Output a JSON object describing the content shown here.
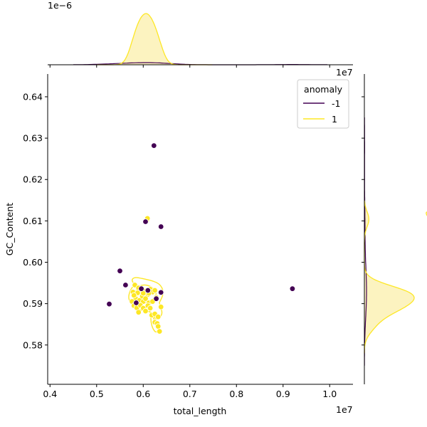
{
  "chart_data": {
    "type": "scatter",
    "xlabel": "total_length",
    "ylabel": "GC_Content",
    "x_offset_label": "1e7",
    "y_offset_label": "",
    "top_marginal_offset_label": "1e−6",
    "right_marginal_offset_label": "1e7",
    "xlim": [
      0.395,
      1.05
    ],
    "ylim": [
      0.5705,
      0.6455
    ],
    "x_ticks": [
      0.4,
      0.5,
      0.6,
      0.7,
      0.8,
      0.9,
      1.0
    ],
    "x_tick_labels": [
      "0.4",
      "0.5",
      "0.6",
      "0.7",
      "0.8",
      "0.9",
      "1.0"
    ],
    "y_ticks": [
      0.58,
      0.59,
      0.6,
      0.61,
      0.62,
      0.63,
      0.64
    ],
    "y_tick_labels": [
      "0.58",
      "0.59",
      "0.60",
      "0.61",
      "0.62",
      "0.63",
      "0.64"
    ],
    "legend": {
      "title": "anomaly",
      "location": "upper right",
      "entries": [
        {
          "label": "-1",
          "color": "#440154"
        },
        {
          "label": "1",
          "color": "#fde725"
        }
      ]
    },
    "colors": {
      "anomaly_neg": "#440154",
      "anomaly_pos": "#fde725",
      "kde_fill": "#fcf3c0"
    },
    "series": [
      {
        "name": "-1",
        "color": "#440154",
        "points": [
          [
            0.623,
            0.6282
          ],
          [
            0.605,
            0.6098
          ],
          [
            0.638,
            0.6086
          ],
          [
            0.55,
            0.5979
          ],
          [
            0.562,
            0.5945
          ],
          [
            0.527,
            0.5899
          ],
          [
            0.92,
            0.5936
          ],
          [
            0.638,
            0.5927
          ],
          [
            0.585,
            0.5902
          ],
          [
            0.61,
            0.5932
          ],
          [
            0.628,
            0.5912
          ],
          [
            0.596,
            0.5936
          ]
        ]
      },
      {
        "name": "1",
        "color": "#fde725",
        "points": [
          [
            0.608,
            0.6102
          ],
          [
            0.609,
            0.6106
          ],
          [
            0.582,
            0.5945
          ],
          [
            0.59,
            0.5938
          ],
          [
            0.596,
            0.5925
          ],
          [
            0.602,
            0.5932
          ],
          [
            0.605,
            0.593
          ],
          [
            0.61,
            0.5922
          ],
          [
            0.615,
            0.5935
          ],
          [
            0.62,
            0.5928
          ],
          [
            0.625,
            0.5932
          ],
          [
            0.628,
            0.5915
          ],
          [
            0.578,
            0.5928
          ],
          [
            0.588,
            0.5926
          ],
          [
            0.584,
            0.5912
          ],
          [
            0.592,
            0.5908
          ],
          [
            0.598,
            0.5918
          ],
          [
            0.6,
            0.5905
          ],
          [
            0.605,
            0.5912
          ],
          [
            0.612,
            0.5902
          ],
          [
            0.62,
            0.5905
          ],
          [
            0.576,
            0.5905
          ],
          [
            0.58,
            0.5895
          ],
          [
            0.586,
            0.589
          ],
          [
            0.594,
            0.5896
          ],
          [
            0.6,
            0.5889
          ],
          [
            0.61,
            0.5895
          ],
          [
            0.615,
            0.5889
          ],
          [
            0.59,
            0.5879
          ],
          [
            0.605,
            0.5882
          ],
          [
            0.618,
            0.5872
          ],
          [
            0.625,
            0.5875
          ],
          [
            0.632,
            0.5868
          ],
          [
            0.625,
            0.5855
          ],
          [
            0.63,
            0.5852
          ],
          [
            0.632,
            0.5845
          ],
          [
            0.635,
            0.5833
          ],
          [
            0.638,
            0.5892
          ],
          [
            0.6,
            0.5925
          ],
          [
            0.612,
            0.5925
          ],
          [
            0.58,
            0.592
          ]
        ]
      }
    ],
    "top_marginal": {
      "type": "kde",
      "series": "1",
      "peak_x": 0.607
    },
    "right_marginal": {
      "type": "kde",
      "series": "1",
      "peak_y": 0.5922
    }
  }
}
